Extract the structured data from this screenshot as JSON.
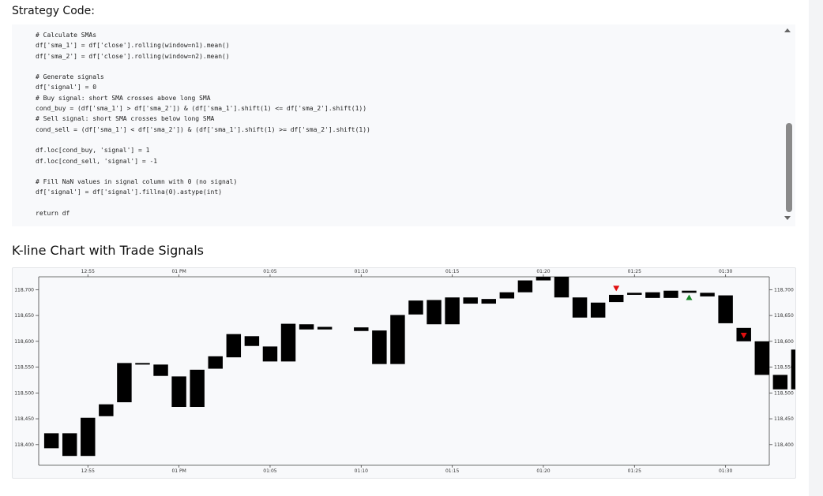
{
  "page": {
    "code_heading": "Strategy Code:",
    "chart_heading": "K-line Chart with Trade Signals"
  },
  "code_lines": [
    "# Calculate SMAs",
    "df['sma_1'] = df['close'].rolling(window=n1).mean()",
    "df['sma_2'] = df['close'].rolling(window=n2).mean()",
    "",
    "# Generate signals",
    "df['signal'] = 0",
    "# Buy signal: short SMA crosses above long SMA",
    "cond_buy = (df['sma_1'] > df['sma_2']) & (df['sma_1'].shift(1) <= df['sma_2'].shift(1))",
    "# Sell signal: short SMA crosses below long SMA",
    "cond_sell = (df['sma_1'] < df['sma_2']) & (df['sma_1'].shift(1) >= df['sma_2'].shift(1))",
    "",
    "df.loc[cond_buy, 'signal'] = 1",
    "df.loc[cond_sell, 'signal'] = -1",
    "",
    "# Fill NaN values in signal column with 0 (no signal)",
    "df['signal'] = df['signal'].fillna(0).astype(int)",
    "",
    "return df"
  ],
  "chart_data": {
    "type": "candlestick",
    "title": "",
    "x_tick_labels": [
      "12:55",
      "01 PM",
      "01:05",
      "01:10",
      "01:15",
      "01:20",
      "01:25",
      "01:30"
    ],
    "x_tick_minutes": [
      -5,
      0,
      5,
      10,
      15,
      20,
      25,
      30
    ],
    "y_tick_labels": [
      "118,400",
      "118,450",
      "118,500",
      "118,550",
      "118,600",
      "118,650",
      "118,700"
    ],
    "y_ticks": [
      118400,
      118450,
      118500,
      118550,
      118600,
      118650,
      118700
    ],
    "ylim": [
      118360,
      118725
    ],
    "xlim_minutes": [
      -7.7,
      32.4
    ],
    "candle_color": "#000000",
    "buy_marker_color": "#1a8a2a",
    "sell_marker_color": "#e01010",
    "candles": [
      {
        "t": -7,
        "o": 118422,
        "c": 118393
      },
      {
        "t": -6,
        "o": 118422,
        "c": 118378
      },
      {
        "t": -5,
        "o": 118452,
        "c": 118378
      },
      {
        "t": -4,
        "o": 118478,
        "c": 118455
      },
      {
        "t": -3,
        "o": 118558,
        "c": 118482
      },
      {
        "t": -2,
        "o": 118558,
        "c": 118556
      },
      {
        "t": -1,
        "o": 118555,
        "c": 118533
      },
      {
        "t": 0,
        "o": 118532,
        "c": 118473
      },
      {
        "t": 1,
        "o": 118545,
        "c": 118473
      },
      {
        "t": 2,
        "o": 118571,
        "c": 118547
      },
      {
        "t": 3,
        "o": 118614,
        "c": 118569
      },
      {
        "t": 4,
        "o": 118610,
        "c": 118591
      },
      {
        "t": 5,
        "o": 118590,
        "c": 118561
      },
      {
        "t": 6,
        "o": 118634,
        "c": 118561
      },
      {
        "t": 7,
        "o": 118633,
        "c": 118623
      },
      {
        "t": 8,
        "o": 118628,
        "c": 118623
      },
      {
        "t": 10,
        "o": 118627,
        "c": 118620
      },
      {
        "t": 11,
        "o": 118621,
        "c": 118556
      },
      {
        "t": 12,
        "o": 118651,
        "c": 118556
      },
      {
        "t": 13,
        "o": 118679,
        "c": 118652
      },
      {
        "t": 14,
        "o": 118680,
        "c": 118633
      },
      {
        "t": 15,
        "o": 118685,
        "c": 118633
      },
      {
        "t": 16,
        "o": 118685,
        "c": 118673
      },
      {
        "t": 17,
        "o": 118682,
        "c": 118673
      },
      {
        "t": 18,
        "o": 118695,
        "c": 118683
      },
      {
        "t": 19,
        "o": 118718,
        "c": 118695
      },
      {
        "t": 20,
        "o": 118725,
        "c": 118718
      },
      {
        "t": 21,
        "o": 118725,
        "c": 118685
      },
      {
        "t": 22,
        "o": 118685,
        "c": 118646
      },
      {
        "t": 23,
        "o": 118675,
        "c": 118646
      },
      {
        "t": 24,
        "o": 118690,
        "c": 118676
      },
      {
        "t": 25,
        "o": 118694,
        "c": 118690
      },
      {
        "t": 26,
        "o": 118695,
        "c": 118684
      },
      {
        "t": 27,
        "o": 118698,
        "c": 118684
      },
      {
        "t": 28,
        "o": 118698,
        "c": 118694
      },
      {
        "t": 29,
        "o": 118694,
        "c": 118687
      },
      {
        "t": 30,
        "o": 118689,
        "c": 118635
      },
      {
        "t": 31,
        "o": 118626,
        "c": 118600
      },
      {
        "t": 32,
        "o": 118600,
        "c": 118535
      },
      {
        "t": 33,
        "o": 118535,
        "c": 118507
      },
      {
        "t": 34,
        "o": 118584,
        "c": 118507
      }
    ],
    "signals": [
      {
        "t": 24,
        "type": "sell",
        "price": 118703
      },
      {
        "t": 28,
        "type": "buy",
        "price": 118686
      },
      {
        "t": 31,
        "type": "sell",
        "price": 118612
      }
    ]
  }
}
